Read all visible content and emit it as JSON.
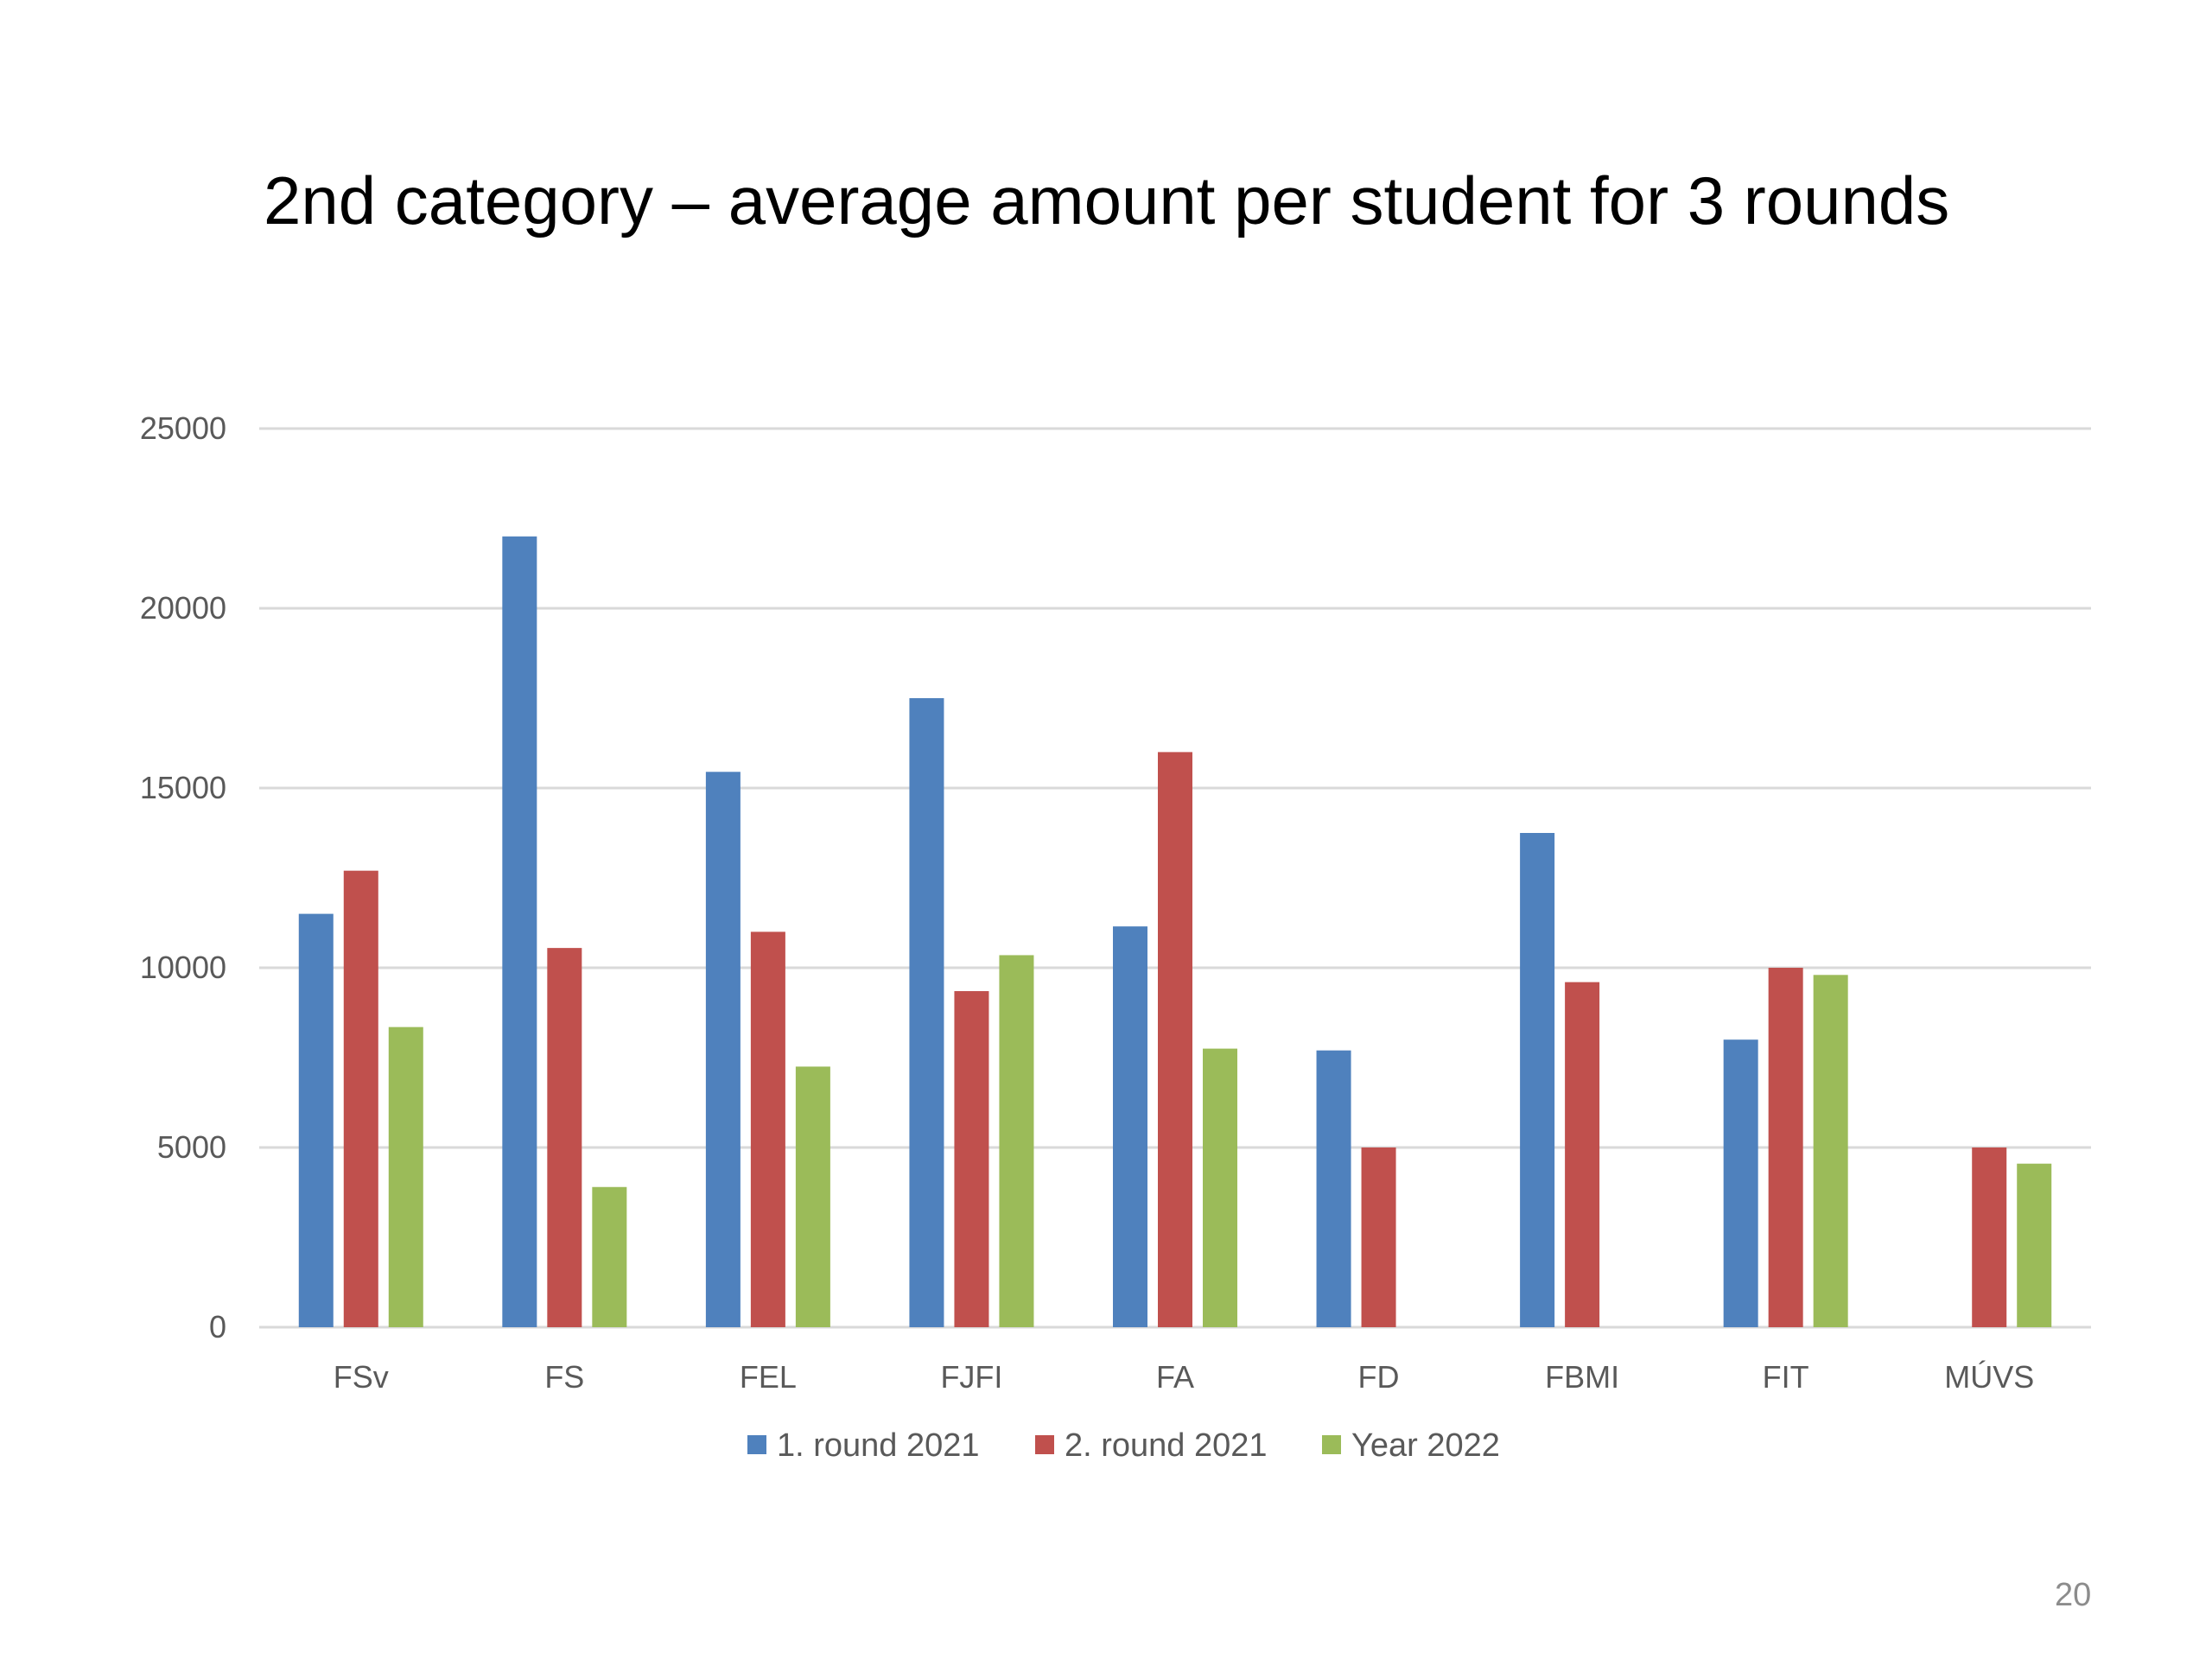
{
  "slide": {
    "title": "2nd category – average amount per student for 3 rounds",
    "page_number": "20"
  },
  "colors": {
    "series": [
      "#4F81BD",
      "#C0504D",
      "#9BBB59"
    ],
    "gridline": "#d9d9d9",
    "tick_text": "#595959"
  },
  "chart_data": {
    "type": "bar",
    "title": "",
    "xlabel": "",
    "ylabel": "",
    "categories": [
      "FSv",
      "FS",
      "FEL",
      "FJFI",
      "FA",
      "FD",
      "FBMI",
      "FIT",
      "MÚVS"
    ],
    "series": [
      {
        "name": "1. round 2021",
        "values": [
          11500,
          22000,
          15450,
          17500,
          11150,
          7700,
          13750,
          8000,
          null
        ]
      },
      {
        "name": "2. round 2021",
        "values": [
          12700,
          10550,
          11000,
          9350,
          16000,
          5000,
          9600,
          10000,
          5000
        ]
      },
      {
        "name": "Year 2022",
        "values": [
          8350,
          3900,
          7250,
          10350,
          7750,
          null,
          null,
          9800,
          4550
        ]
      }
    ],
    "ylim": [
      0,
      25000
    ],
    "yticks": [
      0,
      5000,
      10000,
      15000,
      20000,
      25000
    ],
    "grid": true,
    "legend_position": "bottom"
  }
}
